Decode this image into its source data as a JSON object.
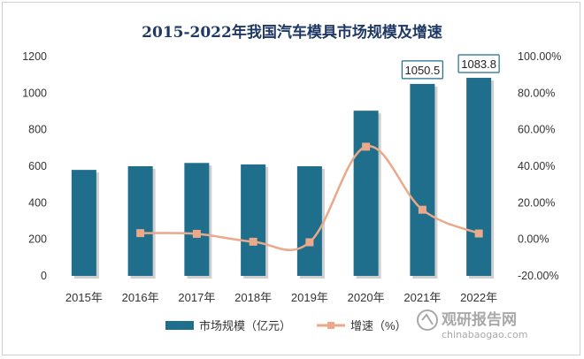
{
  "chart_data": {
    "type": "bar",
    "title": "2015-2022年我国汽车模具市场规模及增速",
    "categories": [
      "2015年",
      "2016年",
      "2017年",
      "2018年",
      "2019年",
      "2020年",
      "2021年",
      "2022年"
    ],
    "series": [
      {
        "name": "市场规模（亿元）",
        "type": "bar",
        "axis": "left",
        "color": "#1f6e8c",
        "values": [
          580,
          600,
          618,
          610,
          600,
          904,
          1050.5,
          1083.8
        ]
      },
      {
        "name": "增速（%）",
        "type": "line",
        "axis": "right",
        "color": "#e9a98a",
        "values": [
          null,
          3.4,
          3.0,
          -1.3,
          -1.6,
          50.7,
          16.2,
          3.2
        ]
      }
    ],
    "data_labels": [
      {
        "category": "2021年",
        "text": "1050.5"
      },
      {
        "category": "2022年",
        "text": "1083.8"
      }
    ],
    "y_left": {
      "min": 0,
      "max": 1200,
      "ticks": [
        "0",
        "200",
        "400",
        "600",
        "800",
        "1000",
        "1200"
      ]
    },
    "y_right": {
      "min": -20,
      "max": 100,
      "ticks": [
        "-20.00%",
        "0.00%",
        "20.00%",
        "40.00%",
        "60.00%",
        "80.00%",
        "100.00%"
      ]
    },
    "legend": {
      "placement": "bottom"
    },
    "grid": false
  },
  "watermark": {
    "text": "观研报告网",
    "sub": "chinabaogao.com",
    "icon": "watermark-logo-icon"
  }
}
